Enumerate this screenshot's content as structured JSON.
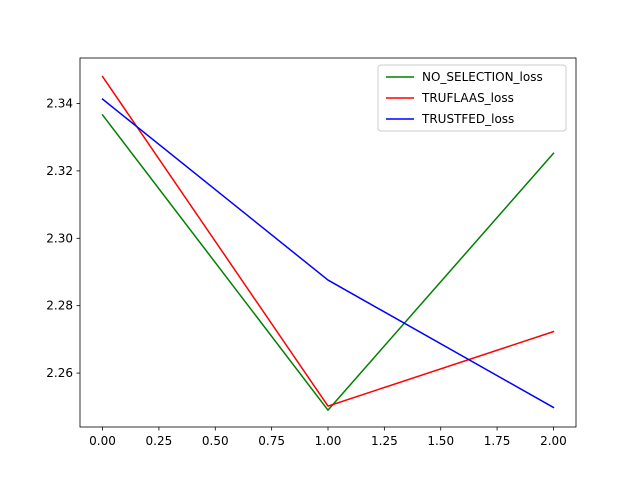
{
  "chart_data": {
    "type": "line",
    "title": "",
    "xlabel": "",
    "ylabel": "",
    "x": [
      0,
      1,
      2
    ],
    "xlim": [
      -0.1,
      2.1
    ],
    "ylim": [
      2.244,
      2.3535
    ],
    "xticks": [
      0.0,
      0.25,
      0.5,
      0.75,
      1.0,
      1.25,
      1.5,
      1.75,
      2.0
    ],
    "xtick_labels": [
      "0.00",
      "0.25",
      "0.50",
      "0.75",
      "1.00",
      "1.25",
      "1.50",
      "1.75",
      "2.00"
    ],
    "yticks": [
      2.26,
      2.28,
      2.3,
      2.32,
      2.34
    ],
    "ytick_labels": [
      "2.26",
      "2.28",
      "2.30",
      "2.32",
      "2.34"
    ],
    "grid": false,
    "legend": "upper right",
    "series": [
      {
        "name": "NO_SELECTION_loss",
        "color": "#008000",
        "values": [
          2.3366,
          2.249,
          2.3252
        ]
      },
      {
        "name": "TRUFLAAS_loss",
        "color": "#ff0000",
        "values": [
          2.348,
          2.2502,
          2.2723
        ]
      },
      {
        "name": "TRUSTFED_loss",
        "color": "#0000ff",
        "values": [
          2.3413,
          2.2876,
          2.2498
        ]
      }
    ]
  }
}
